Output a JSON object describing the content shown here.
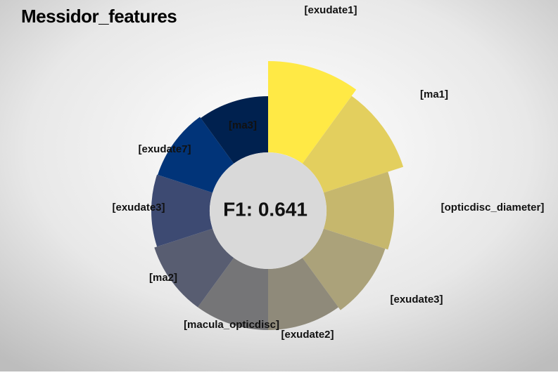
{
  "chart_data": {
    "type": "polar_bar",
    "title": "Messidor_features",
    "center_label": "F1: 0.641",
    "categories": [
      "[exudate1]",
      "[ma1]",
      "[opticdisc_diameter]",
      "[exudate3]",
      "[exudate2]",
      "[macula_opticdisc]",
      "[ma2]",
      "[exudate3]",
      "[exudate7]",
      "[ma3]"
    ],
    "values": [
      130,
      119,
      96,
      92,
      87,
      87,
      87,
      83,
      82,
      80
    ],
    "colors": [
      "#ffe945",
      "#e3cf5e",
      "#c6b76d",
      "#aba27a",
      "#8f8a7a",
      "#757577",
      "#585d71",
      "#3d4a72",
      "#013479",
      "#00214f"
    ],
    "rlim": [
      0,
      140
    ]
  }
}
